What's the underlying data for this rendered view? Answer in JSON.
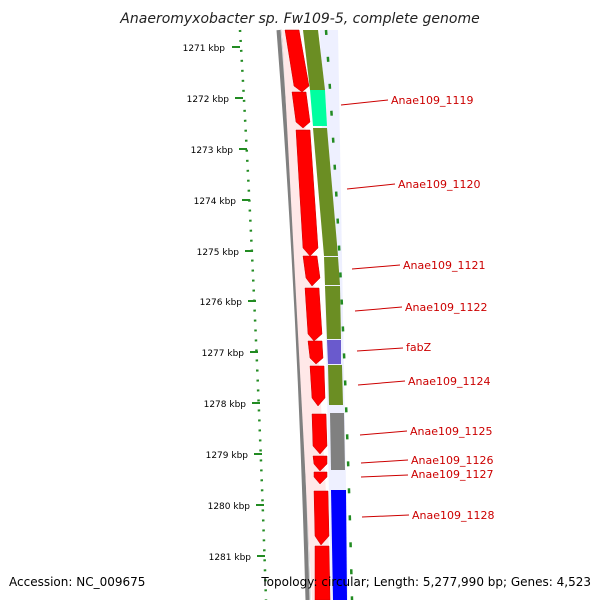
{
  "title": "Anaeromyxobacter sp. Fw109-5, complete genome",
  "footer": {
    "accession": "Accession: NC_009675",
    "summary": "Topology: circular; Length: 5,277,990 bp; Genes: 4,523"
  },
  "ticks": [
    "1271 kbp",
    "1272 kbp",
    "1273 kbp",
    "1274 kbp",
    "1275 kbp",
    "1276 kbp",
    "1277 kbp",
    "1278 kbp",
    "1279 kbp",
    "1280 kbp",
    "1281 kbp"
  ],
  "gene_labels": [
    "Anae109_1119",
    "Anae109_1120",
    "Anae109_1121",
    "Anae109_1122",
    "fabZ",
    "Anae109_1124",
    "Anae109_1125",
    "Anae109_1126",
    "Anae109_1127",
    "Anae109_1128"
  ],
  "colors": {
    "forward_red": "#ff0000",
    "feature_olive": "#6b8e23",
    "feature_cyan": "#00ffa0",
    "feature_blue": "#0000ff",
    "feature_purple": "#6a5acd",
    "feature_grey": "#808080",
    "backbone": "#808080",
    "tick_green": "#228b22",
    "label_red": "#cc0000"
  }
}
